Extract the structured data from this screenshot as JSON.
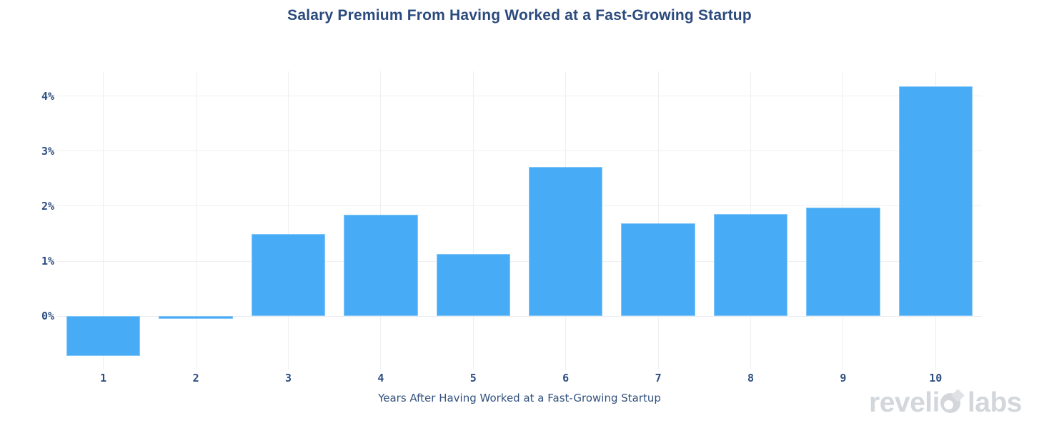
{
  "title": "Salary Premium From Having Worked at a Fast-Growing Startup",
  "watermark": {
    "text": "revelio labs",
    "part1": "reveli",
    "part2": "labs"
  },
  "colors": {
    "bar": "#47abf5",
    "grid": "#edeff2",
    "zero_line": "#e7eaee",
    "title_text": "#2b4a7d",
    "tick_text": "#2d4e81",
    "axis_title_text": "#33527e",
    "watermark": "#d3d7dc",
    "watermark_diamond": "#dfe2e6",
    "background": "#ffffff"
  },
  "chart_data": {
    "type": "bar",
    "title": "Salary Premium From Having Worked at a Fast-Growing Startup",
    "xlabel": "Years After Having Worked at a Fast-Growing Startup",
    "ylabel": "",
    "categories": [
      "1",
      "2",
      "3",
      "4",
      "5",
      "6",
      "7",
      "8",
      "9",
      "10"
    ],
    "values": [
      -0.72,
      -0.05,
      1.49,
      1.84,
      1.13,
      2.71,
      1.69,
      1.86,
      1.97,
      4.18
    ],
    "yticks": [
      0,
      1,
      2,
      3,
      4
    ],
    "ytick_labels": [
      "0%",
      "1%",
      "2%",
      "3%",
      "4%"
    ],
    "ylim": [
      -0.97,
      4.45
    ],
    "grid": true,
    "legend": false,
    "bar_color": "#47abf5"
  }
}
